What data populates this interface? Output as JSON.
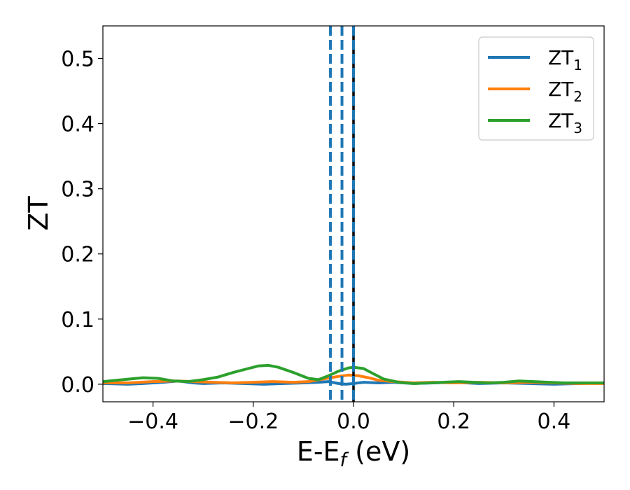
{
  "chart_data": {
    "type": "line",
    "xlabel_main": "E-E",
    "xlabel_sub": "f",
    "xlabel_unit": " (eV)",
    "ylabel": "ZT",
    "xlim": [
      -0.5,
      0.5
    ],
    "ylim": [
      -0.027,
      0.55
    ],
    "x_ticks": [
      -0.4,
      -0.2,
      0.0,
      0.2,
      0.4
    ],
    "x_tick_labels": [
      "−0.4",
      "−0.2",
      "0.0",
      "0.2",
      "0.4"
    ],
    "y_ticks": [
      0.0,
      0.1,
      0.2,
      0.3,
      0.4,
      0.5
    ],
    "y_tick_labels": [
      "0.0",
      "0.1",
      "0.2",
      "0.3",
      "0.4",
      "0.5"
    ],
    "grid": false,
    "legend_position": "top-right",
    "vlines": [
      {
        "x": -0.046,
        "style": "dashed",
        "color": "#1f77b4"
      },
      {
        "x": -0.023,
        "style": "dashed",
        "color": "#1f77b4"
      },
      {
        "x": 0.0,
        "style": "solid",
        "color": "#000000"
      },
      {
        "x": 0.0,
        "style": "dashed",
        "color": "#1f77b4"
      }
    ],
    "series": [
      {
        "base": "ZT",
        "sub": "1",
        "color": "#1f77b4",
        "x": [
          -0.5,
          -0.45,
          -0.42,
          -0.38,
          -0.35,
          -0.32,
          -0.3,
          -0.26,
          -0.22,
          -0.18,
          -0.14,
          -0.1,
          -0.07,
          -0.05,
          -0.03,
          -0.015,
          0.0,
          0.02,
          0.05,
          0.08,
          0.12,
          0.16,
          0.2,
          0.25,
          0.3,
          0.35,
          0.4,
          0.45,
          0.5
        ],
        "y": [
          0.001,
          0.0,
          0.001,
          0.003,
          0.005,
          0.002,
          0.001,
          0.002,
          0.001,
          0.0,
          0.001,
          0.002,
          0.003,
          0.004,
          0.001,
          0.0,
          0.001,
          0.003,
          0.002,
          0.003,
          0.001,
          0.002,
          0.003,
          0.001,
          0.002,
          0.001,
          0.0,
          0.001,
          0.002
        ]
      },
      {
        "base": "ZT",
        "sub": "2",
        "color": "#ff7f0e",
        "x": [
          -0.5,
          -0.45,
          -0.4,
          -0.36,
          -0.32,
          -0.28,
          -0.24,
          -0.2,
          -0.16,
          -0.12,
          -0.09,
          -0.06,
          -0.03,
          -0.01,
          0.01,
          0.03,
          0.05,
          0.08,
          0.12,
          0.16,
          0.2,
          0.25,
          0.3,
          0.35,
          0.4,
          0.45,
          0.5
        ],
        "y": [
          0.002,
          0.002,
          0.004,
          0.005,
          0.004,
          0.003,
          0.002,
          0.003,
          0.004,
          0.003,
          0.004,
          0.008,
          0.012,
          0.014,
          0.013,
          0.01,
          0.006,
          0.004,
          0.002,
          0.003,
          0.002,
          0.003,
          0.002,
          0.003,
          0.002,
          0.001,
          0.001
        ]
      },
      {
        "base": "ZT",
        "sub": "3",
        "color": "#2ca02c",
        "x": [
          -0.5,
          -0.46,
          -0.42,
          -0.39,
          -0.36,
          -0.33,
          -0.3,
          -0.27,
          -0.24,
          -0.21,
          -0.19,
          -0.17,
          -0.15,
          -0.12,
          -0.09,
          -0.07,
          -0.05,
          -0.03,
          -0.01,
          0.0,
          0.02,
          0.04,
          0.06,
          0.09,
          0.12,
          0.15,
          0.18,
          0.21,
          0.24,
          0.27,
          0.3,
          0.33,
          0.36,
          0.39,
          0.42,
          0.46,
          0.5
        ],
        "y": [
          0.004,
          0.007,
          0.01,
          0.009,
          0.005,
          0.004,
          0.007,
          0.011,
          0.018,
          0.024,
          0.028,
          0.029,
          0.026,
          0.018,
          0.009,
          0.007,
          0.013,
          0.02,
          0.025,
          0.026,
          0.024,
          0.016,
          0.008,
          0.003,
          0.001,
          0.002,
          0.003,
          0.004,
          0.003,
          0.002,
          0.003,
          0.005,
          0.004,
          0.003,
          0.002,
          0.002,
          0.002
        ]
      }
    ]
  }
}
